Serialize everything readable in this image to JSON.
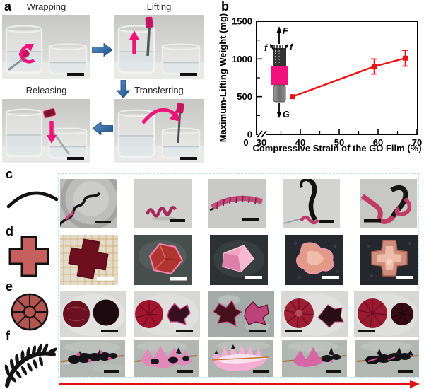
{
  "panels": {
    "a": {
      "label": "a",
      "steps": [
        {
          "title": "Wrapping"
        },
        {
          "title": "Lifting"
        },
        {
          "title": "Releasing"
        },
        {
          "title": "Transferring"
        }
      ]
    },
    "b": {
      "label": "b"
    },
    "c": {
      "label": "c",
      "icon": "arc-icon"
    },
    "d": {
      "label": "d",
      "icon": "cross-icon"
    },
    "e": {
      "label": "e",
      "icon": "segmented-wheel-icon"
    },
    "f": {
      "label": "f",
      "icon": "fern-frond-icon"
    }
  },
  "icons": {
    "process_flow": [
      "arrow-right-icon",
      "arrow-down-icon",
      "arrow-left-icon"
    ],
    "row_shapes": [
      "arc-icon",
      "cross-icon",
      "segmented-wheel-icon",
      "fern-frond-icon"
    ],
    "sequence": "long-red-arrow-icon"
  },
  "colors": {
    "accent_pink": "#ee1478",
    "film_magenta": "#c2145f",
    "process_arrow_blue": "#2e6da4",
    "chart_line_red": "#ee1111",
    "icon_fill_red": "#c05f5c",
    "grid_border_blue": "#b7e2ef",
    "sequence_arrow_red": "#e21212"
  },
  "chart_data": {
    "type": "line",
    "x": [
      38,
      59,
      67
    ],
    "y": [
      500,
      900,
      1010
    ],
    "y_err": [
      0,
      100,
      105
    ],
    "xlabel": "Compressive Strain of the GO Film (%)",
    "ylabel": "Maximum-Lifting Weight (mg)",
    "x_ticks": [
      0,
      30,
      40,
      50,
      60,
      70
    ],
    "x_minor_ticks": [
      35,
      45,
      55,
      65
    ],
    "y_ticks": [
      0,
      500,
      1000,
      1500
    ],
    "y_minor_ticks": [
      250,
      750,
      1250
    ],
    "xlim": [
      30,
      70
    ],
    "ylim": [
      0,
      1500
    ],
    "axis_break": true,
    "grid": false,
    "marker": "square",
    "line_color": "#ee1111",
    "inset_labels": {
      "lift_force": "F",
      "friction_left": "f",
      "friction_right": "f",
      "gravity": "G"
    }
  }
}
